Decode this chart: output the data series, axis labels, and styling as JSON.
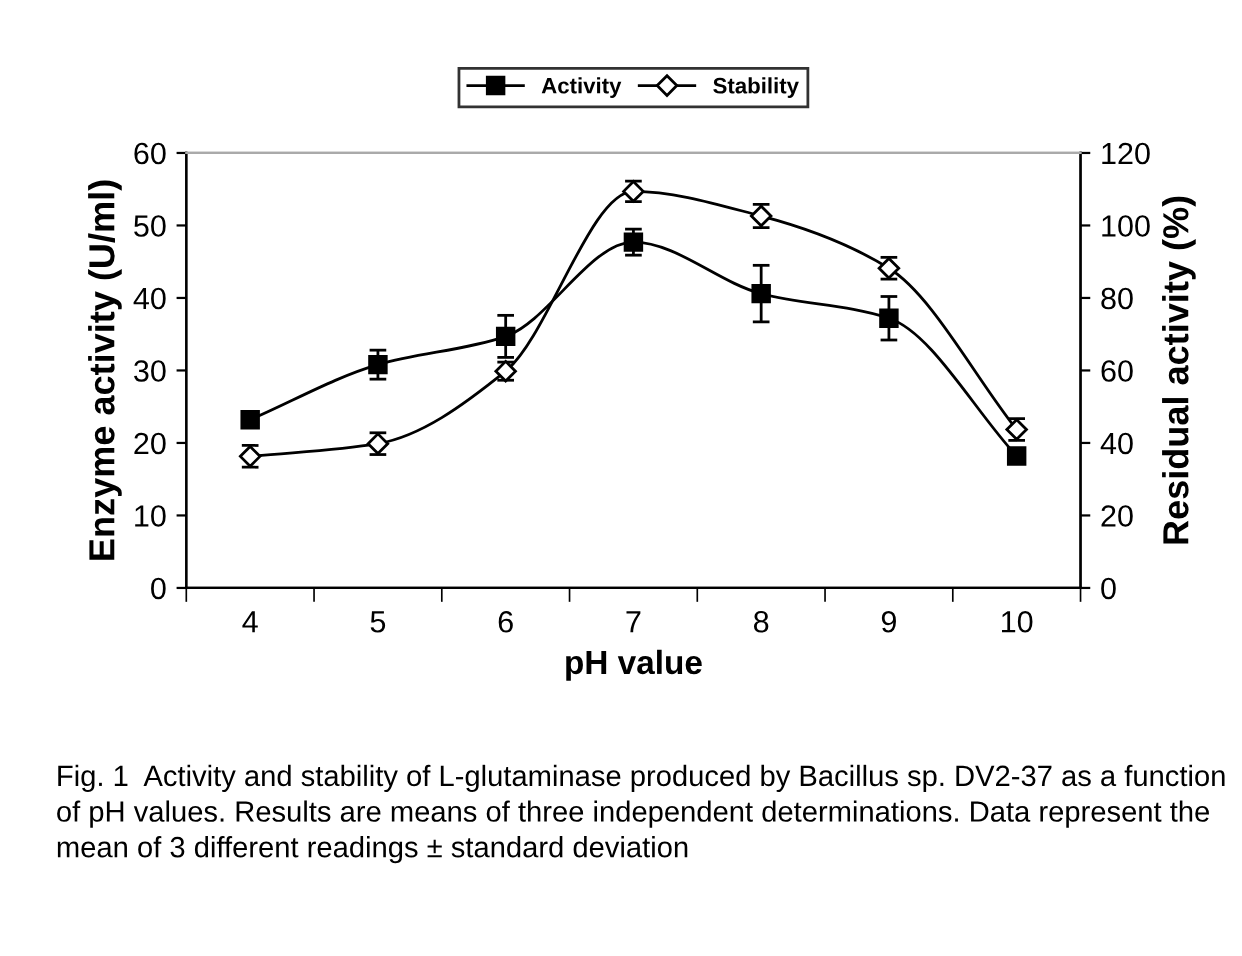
{
  "chart_data": {
    "type": "line",
    "xlabel": "pH value",
    "ylabel": "Enzyme activity (U/ml)",
    "y2label": "Residual activity (%)",
    "categories": [
      "4",
      "5",
      "6",
      "7",
      "8",
      "9",
      "10"
    ],
    "series": [
      {
        "name": "Activity",
        "color": "#000000",
        "marker": "square",
        "values": [
          23.2,
          30.8,
          34.7,
          47.7,
          40.6,
          37.2,
          18.2
        ],
        "errors": [
          1,
          2,
          2.9,
          1.8,
          3.9,
          3,
          0.5
        ]
      },
      {
        "name": "Stability",
        "color": "#000000",
        "marker": "diamond",
        "axis": "y2",
        "values": [
          36.3,
          39.8,
          59.8,
          109.4,
          102.6,
          88.2,
          43.7
        ],
        "errors": [
          3,
          3,
          2.5,
          2.8,
          3.2,
          3,
          3
        ]
      }
    ],
    "ylim": [
      0,
      60
    ],
    "yticks": [
      0,
      10,
      20,
      30,
      40,
      50,
      60
    ],
    "y2lim": [
      0,
      120
    ],
    "y2ticks": [
      0,
      20,
      40,
      60,
      80,
      100,
      120
    ],
    "line_style": "solid",
    "grid": false,
    "legend": "top",
    "annotations": [
      "Fig. 1  Activity and stability of L-glutaminase produced by Bacillus sp. DV2-37 as a function of pH values. Results are means of three independent determinations. Data represent the mean of 3 different readings ± standard deviation"
    ]
  }
}
